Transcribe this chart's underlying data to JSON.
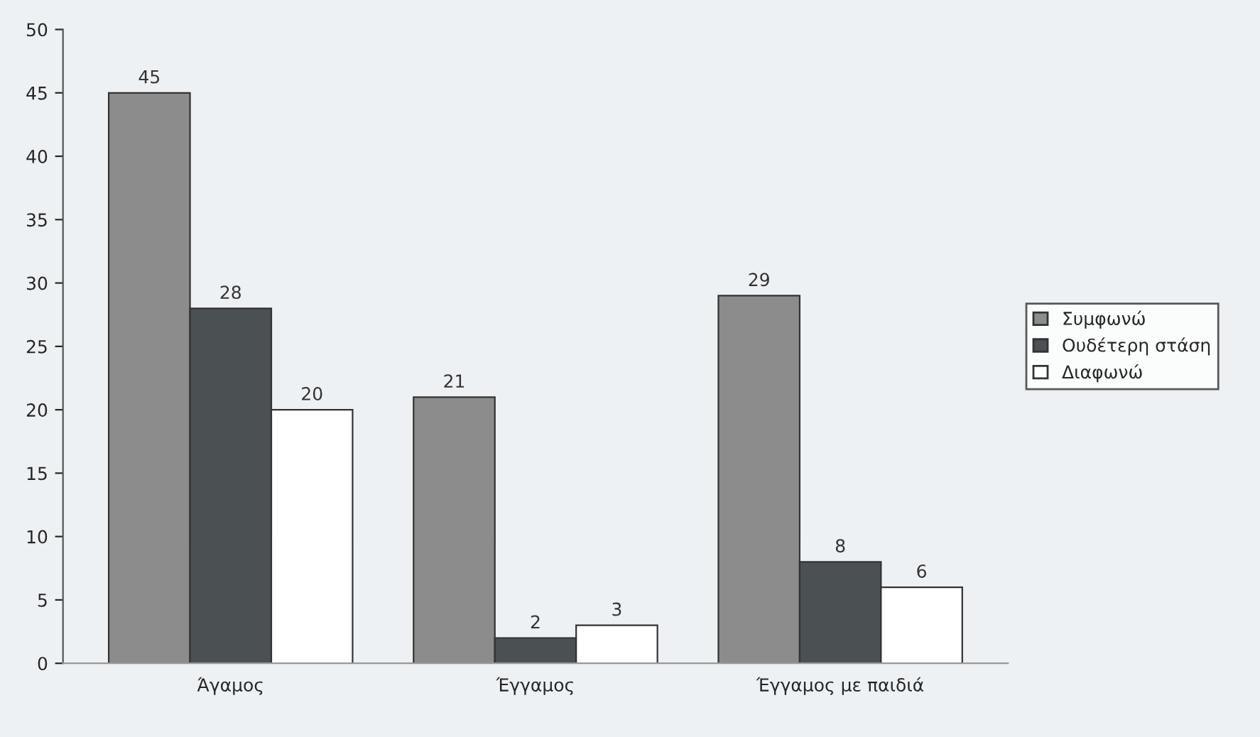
{
  "chart_data": {
    "type": "bar",
    "categories": [
      "Άγαμος",
      "Έγγαμος",
      "Έγγαμος με παιδιά"
    ],
    "series": [
      {
        "name": "Συμφωνώ",
        "color": "#8c8c8c",
        "values": [
          45,
          21,
          29
        ]
      },
      {
        "name": "Ουδέτερη στάση",
        "color": "#4b5053",
        "values": [
          28,
          2,
          8
        ]
      },
      {
        "name": "Διαφωνώ",
        "color": "#ffffff",
        "values": [
          20,
          3,
          6
        ]
      }
    ],
    "ylim": [
      0,
      50
    ],
    "yticks": [
      0,
      5,
      10,
      15,
      20,
      25,
      30,
      35,
      40,
      45,
      50
    ],
    "data_labels": true,
    "grid": false,
    "legend": "right"
  }
}
